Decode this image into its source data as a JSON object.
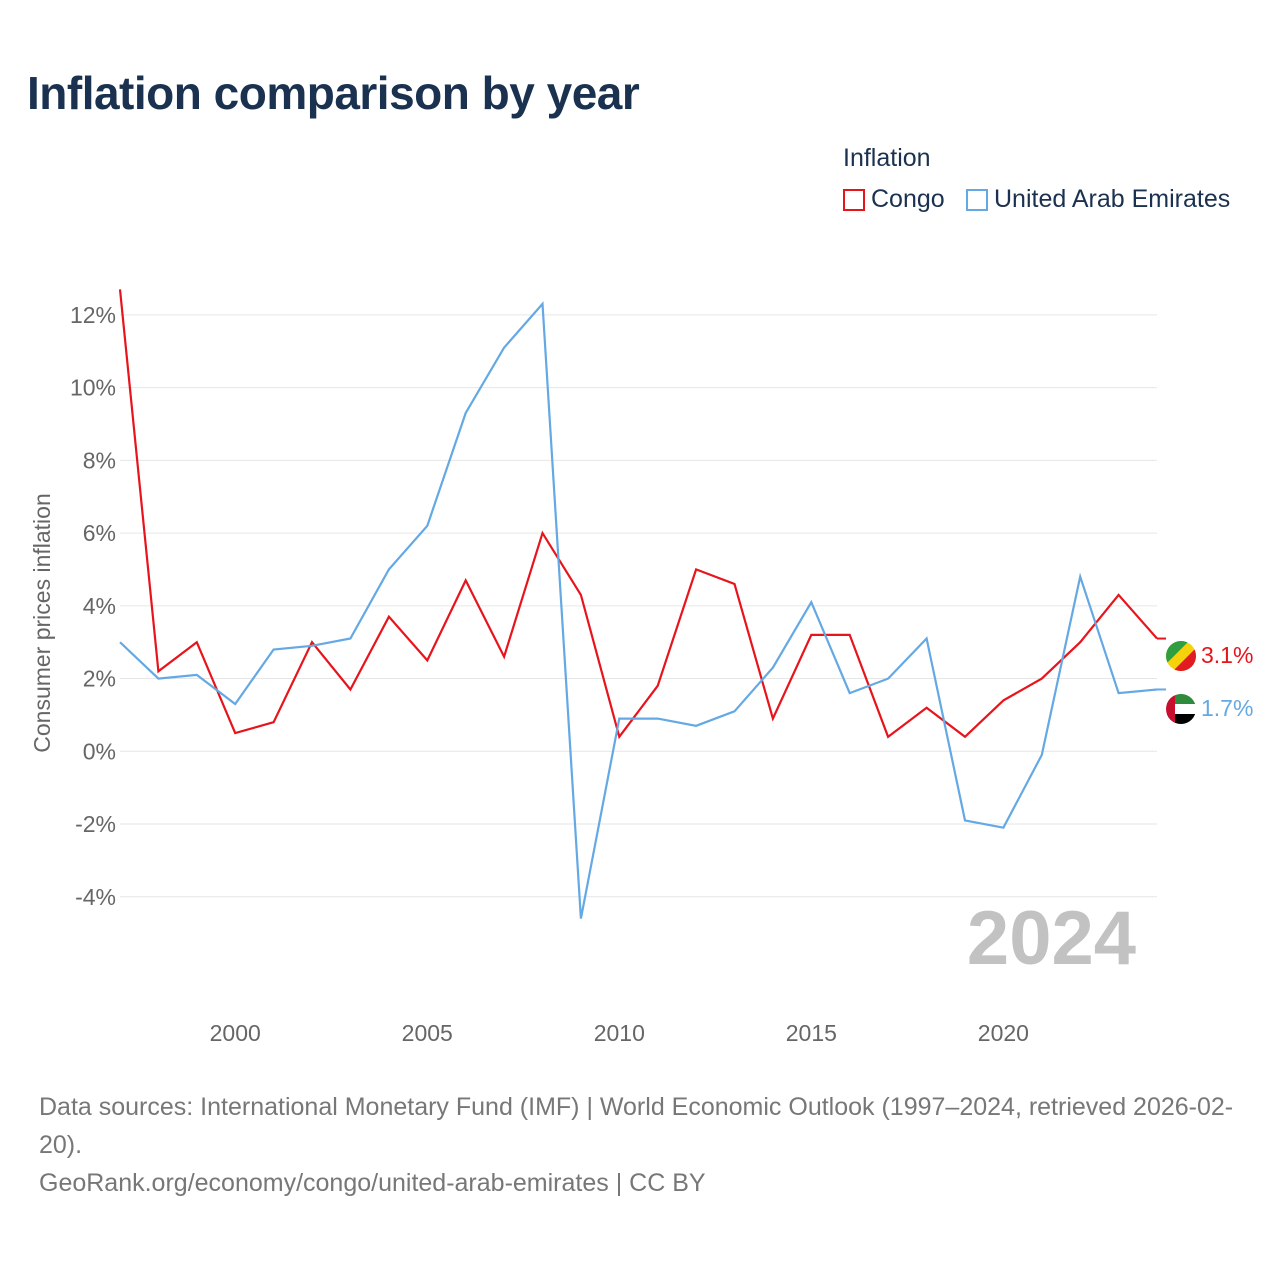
{
  "title": "Inflation comparison by year",
  "legend": {
    "title": "Inflation",
    "items": [
      {
        "label": "Congo",
        "color": "#e8141c"
      },
      {
        "label": "United Arab Emirates",
        "color": "#64a8e4"
      }
    ]
  },
  "year_watermark": "2024",
  "end_labels": {
    "congo": "3.1%",
    "uae": "1.7%"
  },
  "chart_data": {
    "type": "line",
    "title": "Inflation comparison by year",
    "xlabel": "",
    "ylabel": "Consumer prices inflation",
    "x": [
      1997,
      1998,
      1999,
      2000,
      2001,
      2002,
      2003,
      2004,
      2005,
      2006,
      2007,
      2008,
      2009,
      2010,
      2011,
      2012,
      2013,
      2014,
      2015,
      2016,
      2017,
      2018,
      2019,
      2020,
      2021,
      2022,
      2023,
      2024
    ],
    "xlim": [
      1997,
      2024
    ],
    "ylim": [
      -5.6,
      12.6
    ],
    "x_ticks": [
      2000,
      2005,
      2010,
      2015,
      2020
    ],
    "y_ticks": [
      -4,
      -2,
      0,
      2,
      4,
      6,
      8,
      10,
      12
    ],
    "y_tick_labels": [
      "-4%",
      "-2%",
      "0%",
      "2%",
      "4%",
      "6%",
      "8%",
      "10%",
      "12%"
    ],
    "grid": true,
    "legend_position": "top-right",
    "series": [
      {
        "name": "Congo",
        "color": "#e8141c",
        "values": [
          12.7,
          2.2,
          3.0,
          0.5,
          0.8,
          3.0,
          1.7,
          3.7,
          2.5,
          4.7,
          2.6,
          6.0,
          4.3,
          0.4,
          1.8,
          5.0,
          4.6,
          0.9,
          3.2,
          3.2,
          0.4,
          1.2,
          0.4,
          1.4,
          2.0,
          3.0,
          4.3,
          3.1
        ]
      },
      {
        "name": "United Arab Emirates",
        "color": "#64a8e4",
        "values": [
          3.0,
          2.0,
          2.1,
          1.3,
          2.8,
          2.9,
          3.1,
          5.0,
          6.2,
          9.3,
          11.1,
          12.3,
          -4.6,
          0.9,
          0.9,
          0.7,
          1.1,
          2.3,
          4.1,
          1.6,
          2.0,
          3.1,
          -1.9,
          -2.1,
          -0.1,
          4.8,
          1.6,
          1.7
        ]
      }
    ]
  },
  "footer": {
    "sources": "Data sources: International Monetary Fund (IMF) | World Economic Outlook (1997–2024, retrieved 2026-02-20).",
    "link": "GeoRank.org/economy/congo/united-arab-emirates | CC BY"
  }
}
